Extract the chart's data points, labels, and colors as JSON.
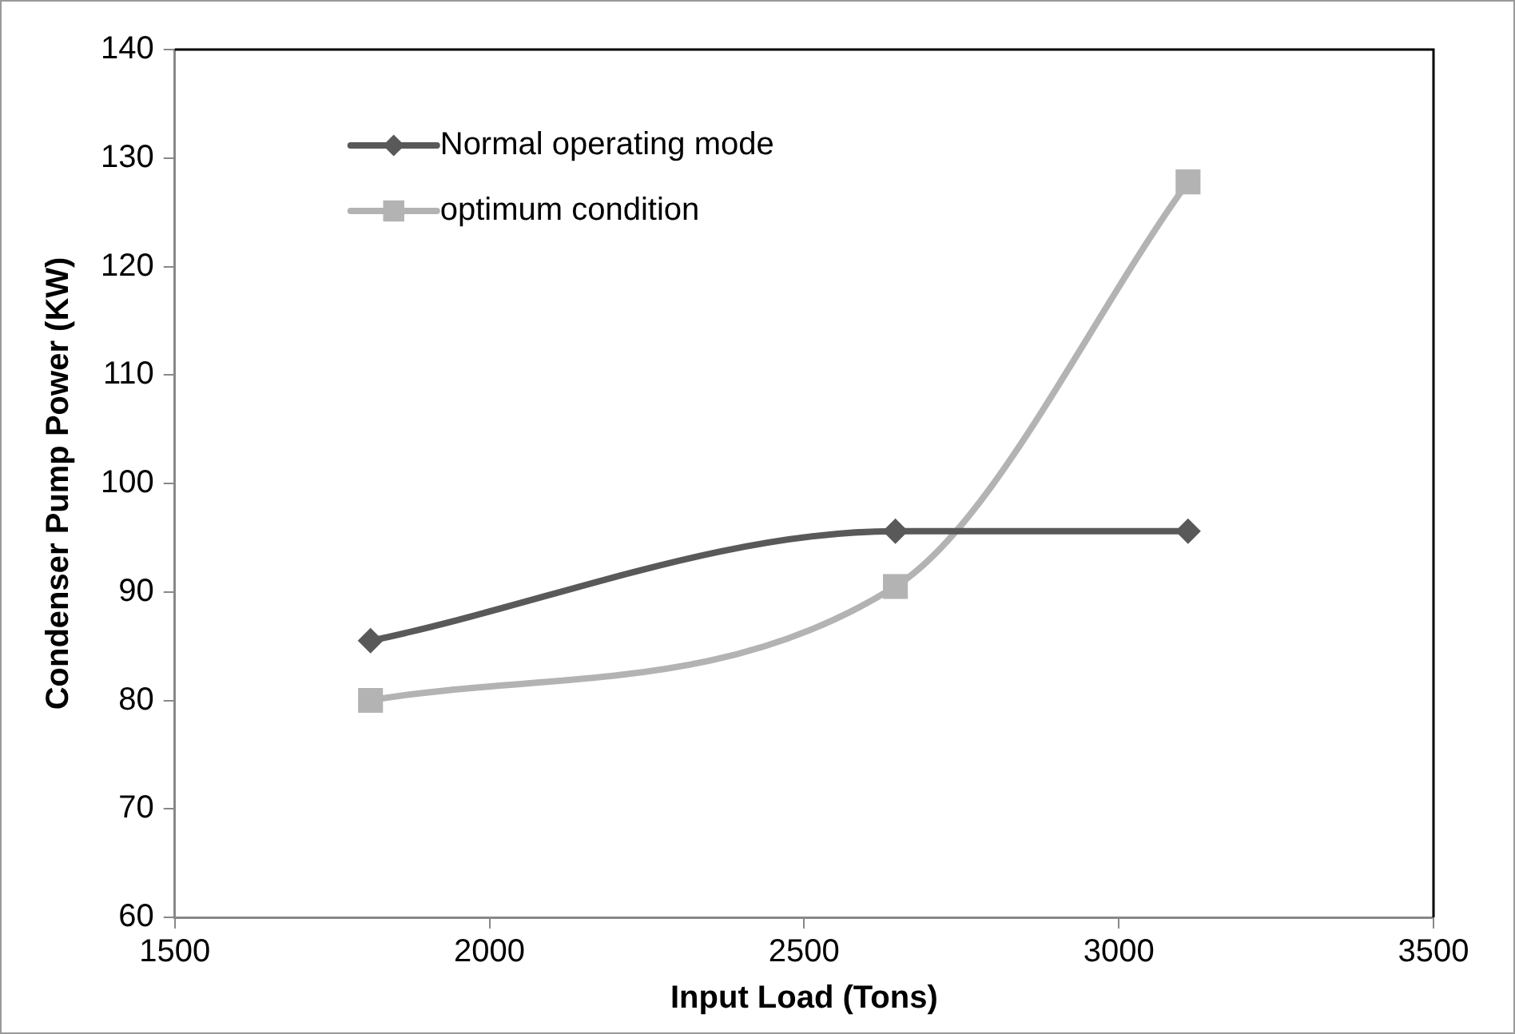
{
  "chart_data": {
    "type": "line",
    "xlabel": "Input Load (Tons)",
    "ylabel": "Condenser Pump Power (KW)",
    "x": [
      1811,
      2645,
      3110
    ],
    "series": [
      {
        "name": "Normal operating mode",
        "color": "#595959",
        "values": [
          85.5,
          95.6,
          95.6
        ],
        "marker": "diamond"
      },
      {
        "name": "optimum condition",
        "color": "#b3b3b3",
        "values": [
          80.0,
          90.5,
          127.8
        ],
        "marker": "square"
      }
    ],
    "xlim": [
      1500,
      3500
    ],
    "xticks": [
      1500,
      2000,
      2500,
      3000,
      3500
    ],
    "ylim": [
      60,
      140
    ],
    "yticks": [
      60,
      70,
      80,
      90,
      100,
      110,
      120,
      130,
      140
    ],
    "grid": false,
    "legend": "top left",
    "line_style": "solid"
  }
}
